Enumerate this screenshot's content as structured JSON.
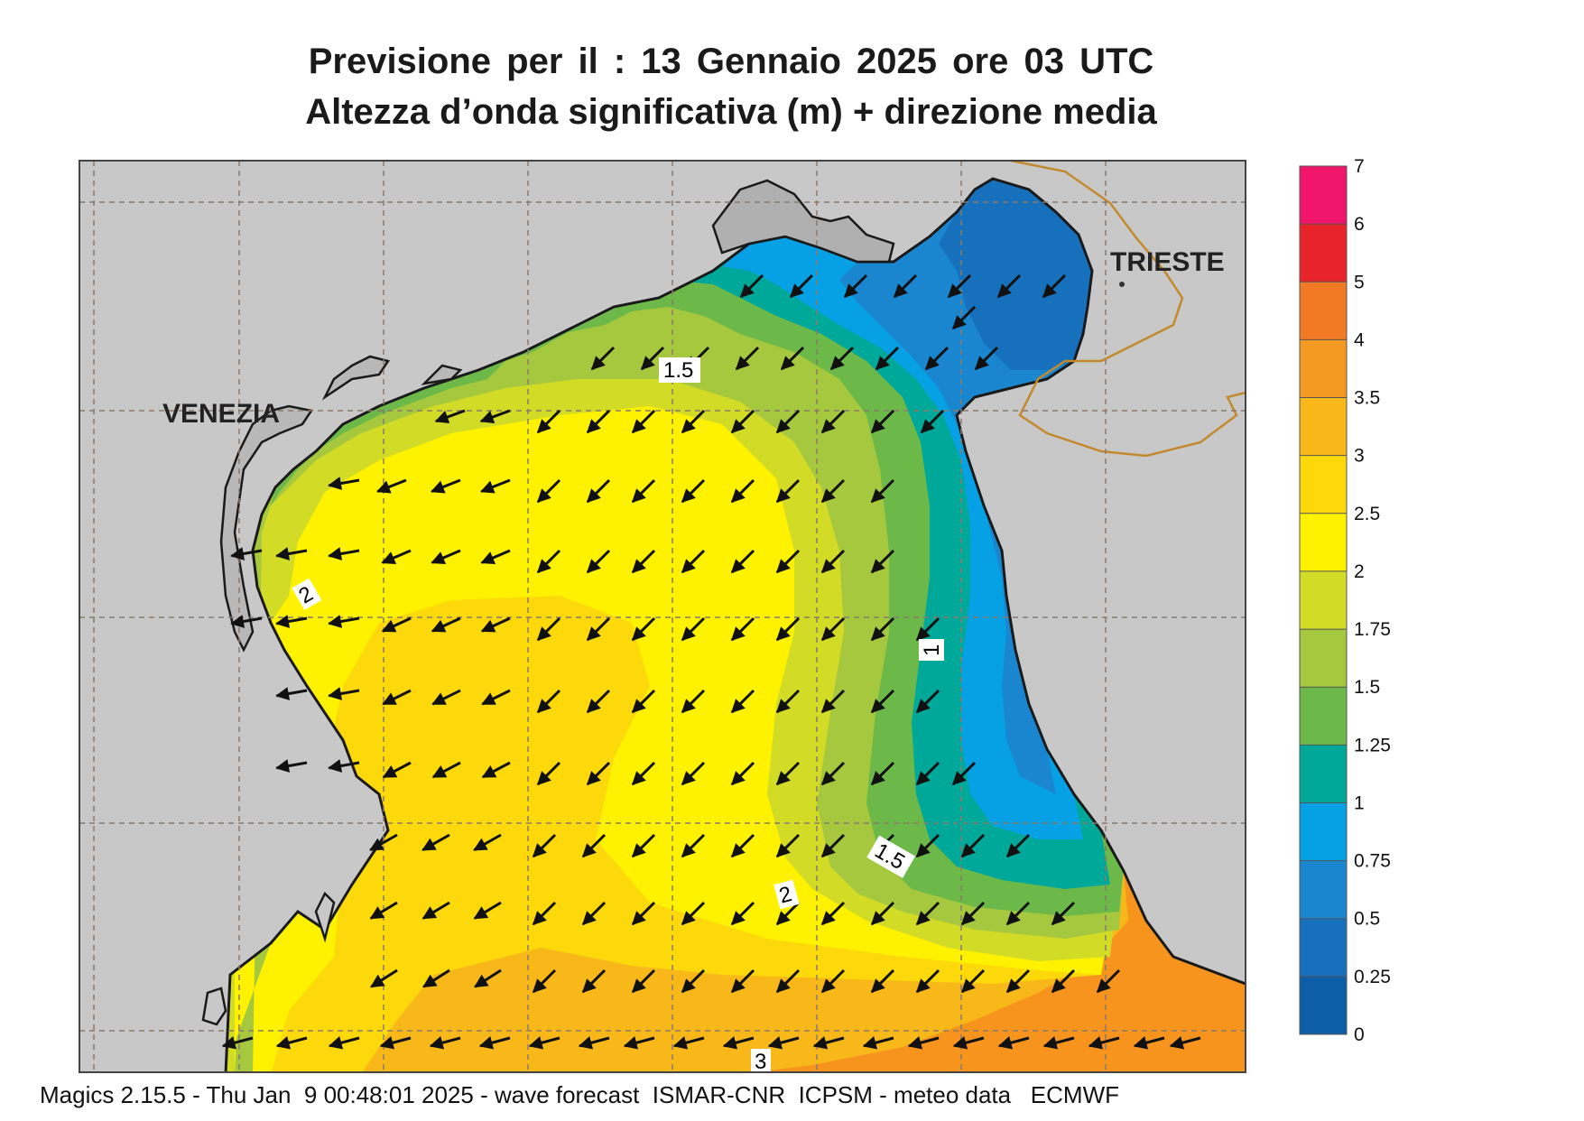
{
  "header": {
    "title_line1": "Previsione per il  :  13  Gennaio  2025   ore 03 UTC",
    "title_line2": "Altezza d’onda significativa (m) + direzione media"
  },
  "cities": {
    "venezia": "VENEZIA",
    "trieste": "TRIESTE"
  },
  "contour_labels": {
    "c15_north": "1.5",
    "c2_west": "2",
    "c1_east": "1",
    "c15_south": "1.5",
    "c2_south": "2",
    "c3_south": "3"
  },
  "colorbar": {
    "labels": [
      "7",
      "6",
      "5",
      "4",
      "3.5",
      "3",
      "2.5",
      "2",
      "1.75",
      "1.5",
      "1.25",
      "1",
      "0.75",
      "0.5",
      "0.25",
      "0"
    ],
    "colors": [
      "#f0156a",
      "#e8242a",
      "#f27a24",
      "#f49a22",
      "#f8b81a",
      "#fdd80a",
      "#fef200",
      "#d2dc26",
      "#a6c83e",
      "#6cb94a",
      "#00a89a",
      "#06a0e4",
      "#1a86d0",
      "#1770bc",
      "#0d5ea8"
    ]
  },
  "colors": {
    "land": "#c8c8c8",
    "frame": "#444444",
    "border": "#c28a2c"
  },
  "arrow_icon": "wave-direction-arrow-icon",
  "footer": {
    "text": "Magics 2.15.5 - Thu Jan  9 00:48:01 2025 - wave forecast  ISMAR-CNR  ICPSM - meteo data   ECMWF"
  }
}
